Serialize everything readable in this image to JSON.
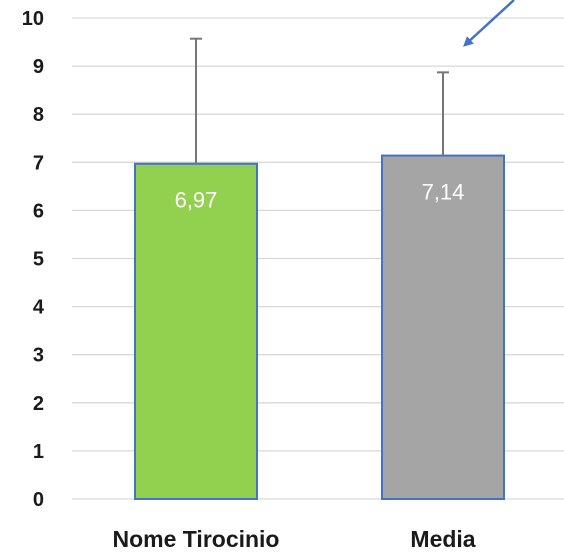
{
  "chart_data": {
    "type": "bar",
    "title": "",
    "xlabel": "",
    "ylabel": "",
    "categories": [
      "Nome Tirocinio",
      "Media"
    ],
    "values": [
      6.97,
      7.14
    ],
    "data_labels": [
      "6,97",
      "7,14"
    ],
    "error_upper": [
      9.57,
      8.87
    ],
    "ylim": [
      0,
      10
    ],
    "yticks": [
      0,
      1,
      2,
      3,
      4,
      5,
      6,
      7,
      8,
      9,
      10
    ],
    "ytick_labels": [
      "0",
      "1",
      "2",
      "3",
      "4",
      "5",
      "6",
      "7",
      "8",
      "9",
      "10"
    ],
    "grid": true,
    "legend": "none",
    "colors": {
      "bars": [
        "#92D050",
        "#A5A5A5"
      ],
      "bar_border": "#4472C4",
      "gridline": "#D9D9D9",
      "error_bar": "#767676",
      "arrow": "#4472C4"
    }
  }
}
